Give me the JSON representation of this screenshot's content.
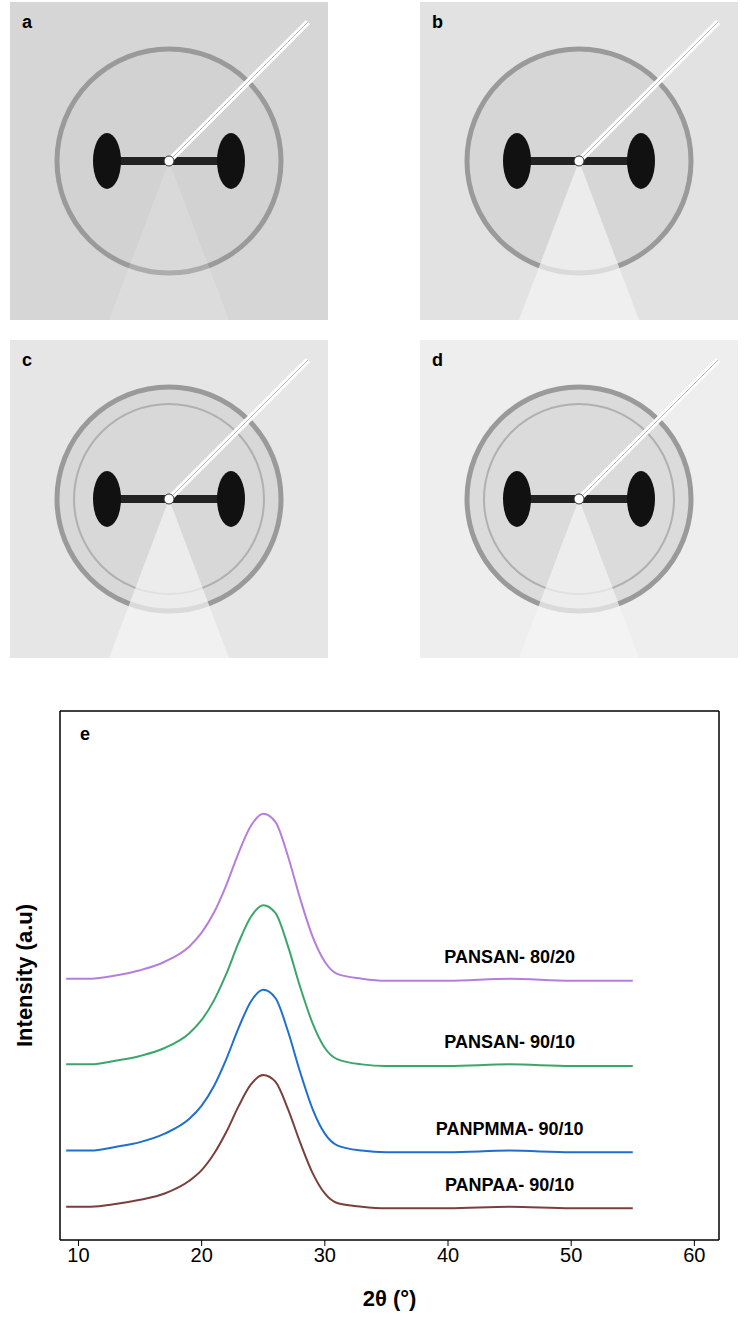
{
  "images": [
    "a",
    "b",
    "c",
    "d"
  ],
  "chart_data": {
    "type": "line",
    "panel_label": "e",
    "x_label": "2θ (°)",
    "y_label": "Intensity (a.u)",
    "x": [
      9,
      11,
      13,
      15,
      17,
      19,
      20,
      21,
      22,
      23,
      24,
      25,
      26,
      27,
      28,
      29,
      30,
      31,
      33,
      35,
      40,
      45,
      50,
      55
    ],
    "series": [
      {
        "name": "PANSAN- 80/20",
        "color": "#b57edc",
        "values": [
          4.94,
          4.94,
          5.0,
          5.1,
          5.26,
          5.55,
          5.81,
          6.19,
          6.71,
          7.32,
          7.83,
          8.06,
          7.9,
          7.26,
          6.45,
          5.74,
          5.26,
          5.03,
          4.94,
          4.9,
          4.9,
          4.94,
          4.9,
          4.9
        ]
      },
      {
        "name": "PANSAN- 90/10",
        "color": "#3aa66a",
        "values": [
          3.32,
          3.32,
          3.39,
          3.48,
          3.63,
          3.91,
          4.16,
          4.53,
          5.03,
          5.62,
          6.11,
          6.33,
          6.18,
          5.56,
          4.78,
          4.1,
          3.63,
          3.42,
          3.32,
          3.29,
          3.29,
          3.32,
          3.29,
          3.29
        ]
      },
      {
        "name": "PANPMMA- 90/10",
        "color": "#1f6fd1",
        "values": [
          1.69,
          1.69,
          1.76,
          1.85,
          2.01,
          2.29,
          2.54,
          2.91,
          3.42,
          4.01,
          4.51,
          4.73,
          4.57,
          3.95,
          3.17,
          2.48,
          2.01,
          1.79,
          1.69,
          1.66,
          1.66,
          1.69,
          1.66,
          1.66
        ]
      },
      {
        "name": "PANPAA- 90/10",
        "color": "#7b3f3a",
        "values": [
          0.63,
          0.63,
          0.68,
          0.76,
          0.88,
          1.12,
          1.32,
          1.63,
          2.04,
          2.53,
          2.94,
          3.12,
          2.99,
          2.48,
          1.84,
          1.27,
          0.88,
          0.7,
          0.63,
          0.6,
          0.6,
          0.63,
          0.6,
          0.6
        ]
      }
    ],
    "xlim": [
      8.5,
      62
    ],
    "xticks": [
      10,
      20,
      30,
      40,
      50,
      60
    ],
    "ylim": [
      0,
      10
    ],
    "tick_labels": "x"
  }
}
